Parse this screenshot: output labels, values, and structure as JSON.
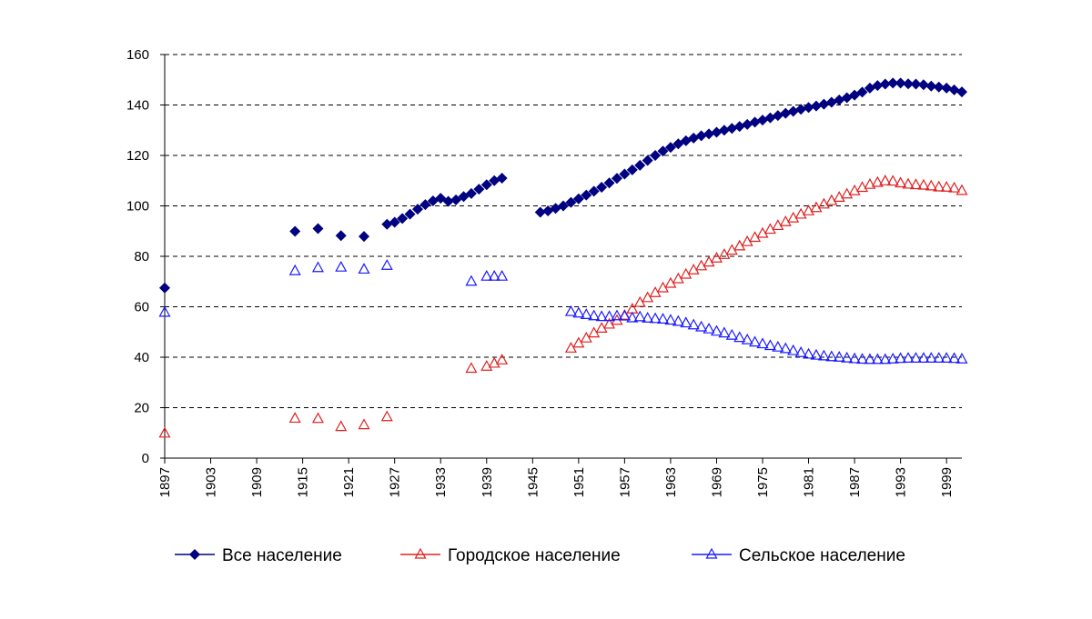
{
  "chart_data": {
    "type": "scatter",
    "x": [
      1897,
      1914,
      1917,
      1920,
      1923,
      1926,
      1927,
      1928,
      1929,
      1930,
      1931,
      1932,
      1933,
      1934,
      1935,
      1936,
      1937,
      1938,
      1939,
      1940,
      1941,
      1946,
      1947,
      1948,
      1949,
      1950,
      1951,
      1952,
      1953,
      1954,
      1955,
      1956,
      1957,
      1958,
      1959,
      1960,
      1961,
      1962,
      1963,
      1964,
      1965,
      1966,
      1967,
      1968,
      1969,
      1970,
      1971,
      1972,
      1973,
      1974,
      1975,
      1976,
      1977,
      1978,
      1979,
      1980,
      1981,
      1982,
      1983,
      1984,
      1985,
      1986,
      1987,
      1988,
      1989,
      1990,
      1991,
      1992,
      1993,
      1994,
      1995,
      1996,
      1997,
      1998,
      1999,
      2000,
      2001
    ],
    "series": [
      {
        "name": "Все население",
        "color": "#000080",
        "marker": "diamond",
        "values": [
          67.5,
          89.9,
          91.0,
          88.2,
          87.9,
          92.7,
          93.5,
          95,
          96.7,
          98.7,
          100.5,
          102,
          103,
          101.8,
          102.4,
          103.7,
          104.9,
          106.6,
          108.4,
          110,
          111,
          97.5,
          98,
          99,
          100,
          101.4,
          102.8,
          104.3,
          105.8,
          107.4,
          109.1,
          110.9,
          112.6,
          114.3,
          116.1,
          118,
          120,
          121.7,
          123.2,
          124.6,
          125.8,
          126.9,
          127.8,
          128.5,
          129.2,
          130,
          130.7,
          131.5,
          132.3,
          133.2,
          134,
          134.9,
          135.8,
          136.7,
          137.5,
          138.3,
          139,
          139.6,
          140.3,
          141.1,
          142,
          142.9,
          143.9,
          145.1,
          146.7,
          147.7,
          148.3,
          148.7,
          148.7,
          148.4,
          148.3,
          148,
          147.5,
          147.1,
          146.7,
          146,
          145.2
        ]
      },
      {
        "name": "Городское население",
        "color": "#e02020",
        "marker": "triangle",
        "values": [
          9.8,
          15.7,
          15.6,
          12.4,
          13.1,
          16.3,
          null,
          null,
          null,
          null,
          null,
          null,
          null,
          null,
          null,
          null,
          35.5,
          null,
          36.3,
          37.5,
          38.8,
          null,
          null,
          null,
          null,
          43.5,
          45.5,
          47.5,
          49.5,
          51.4,
          53,
          54.5,
          56.5,
          59,
          61.6,
          63.5,
          65.5,
          67.4,
          69.2,
          71,
          72.8,
          74.5,
          76.1,
          77.6,
          79.2,
          80.6,
          82.3,
          84,
          85.7,
          87.4,
          89,
          90.6,
          92.1,
          93.6,
          95.1,
          96.6,
          97.9,
          99.2,
          100.6,
          102,
          103.3,
          104.6,
          105.9,
          107.2,
          108.4,
          109.2,
          109.8,
          109.7,
          109,
          108.5,
          108.3,
          108.1,
          107.8,
          107.4,
          107.3,
          107,
          106
        ]
      },
      {
        "name": "Сельское население",
        "color": "#1a1aff",
        "marker": "triangle",
        "values": [
          57.7,
          74.2,
          75.4,
          75.6,
          74.8,
          76.3,
          null,
          null,
          null,
          null,
          null,
          null,
          null,
          null,
          null,
          null,
          70,
          null,
          72,
          72,
          72,
          null,
          null,
          null,
          null,
          58,
          57.4,
          56.8,
          56.3,
          56,
          56,
          56.3,
          56.2,
          55.5,
          55.9,
          55.4,
          55.2,
          55,
          54.6,
          54.1,
          53.5,
          52.7,
          51.9,
          51.1,
          50.2,
          49.5,
          48.6,
          47.7,
          46.8,
          45.9,
          45.2,
          44.5,
          43.9,
          43.3,
          42.5,
          41.7,
          41.1,
          40.7,
          40.4,
          40.1,
          39.9,
          39.6,
          39.3,
          39.1,
          39,
          39,
          39,
          39.2,
          39.4,
          39.5,
          39.5,
          39.5,
          39.5,
          39.5,
          39.5,
          39.4,
          39.2
        ]
      }
    ],
    "xlim": [
      1897,
      2001
    ],
    "xticks": [
      1897,
      1903,
      1909,
      1915,
      1921,
      1927,
      1933,
      1939,
      1945,
      1951,
      1957,
      1963,
      1969,
      1975,
      1981,
      1987,
      1993,
      1999
    ],
    "ylim": [
      0,
      160
    ],
    "yticks": [
      0,
      20,
      40,
      60,
      80,
      100,
      120,
      140,
      160
    ],
    "grid": true,
    "legend": "bottom"
  }
}
